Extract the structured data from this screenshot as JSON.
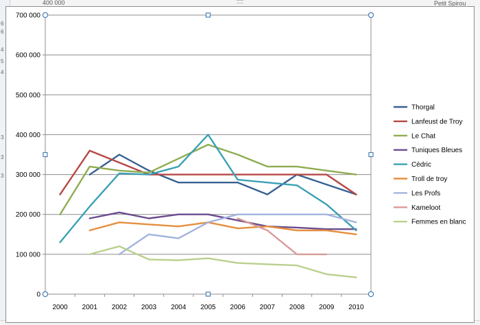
{
  "background": {
    "top_value": "400 000",
    "top_dots": "::::",
    "right_series": "Petit Spirou",
    "left_row_fragments": [
      "6",
      "6",
      "4",
      "5",
      "4",
      "3",
      "3",
      "3"
    ]
  },
  "colors": {
    "grid": "#8c8c8c",
    "handle": "#4a7fb5",
    "frame": "#8c8c8c"
  },
  "chart_data": {
    "type": "line",
    "title": "",
    "xlabel": "",
    "ylabel": "",
    "x": [
      "2000",
      "2001",
      "2002",
      "2003",
      "2004",
      "2005",
      "2006",
      "2007",
      "2008",
      "2009",
      "2010"
    ],
    "ylim": [
      0,
      700000
    ],
    "yticks": [
      0,
      100000,
      200000,
      300000,
      400000,
      500000,
      600000,
      700000
    ],
    "ytick_labels": [
      "0",
      "100 000",
      "200 000",
      "300 000",
      "400 000",
      "500 000",
      "600 000",
      "700 000"
    ],
    "grid": true,
    "legend_position": "right",
    "series": [
      {
        "name": "Thorgal",
        "color": "#376092",
        "values": [
          null,
          300000,
          350000,
          310000,
          280000,
          280000,
          280000,
          250000,
          300000,
          275000,
          250000
        ]
      },
      {
        "name": "Lanfeust de Troy",
        "color": "#b64744",
        "values": [
          250000,
          360000,
          330000,
          300000,
          300000,
          300000,
          300000,
          300000,
          300000,
          300000,
          250000
        ]
      },
      {
        "name": "Le Chat",
        "color": "#8fac4f",
        "values": [
          200000,
          320000,
          310000,
          305000,
          340000,
          375000,
          350000,
          320000,
          320000,
          310000,
          300000
        ]
      },
      {
        "name": "Tuniques Bleues",
        "color": "#6a4b8e",
        "values": [
          null,
          190000,
          205000,
          190000,
          200000,
          200000,
          185000,
          170000,
          167000,
          163000,
          163000
        ]
      },
      {
        "name": "Cédric",
        "color": "#3aa0b4",
        "values": [
          130000,
          220000,
          303000,
          300000,
          320000,
          400000,
          287000,
          280000,
          273000,
          225000,
          160000
        ]
      },
      {
        "name": "Troll de troy",
        "color": "#e58e3d",
        "values": [
          null,
          160000,
          180000,
          175000,
          170000,
          180000,
          165000,
          170000,
          160000,
          160000,
          150000
        ]
      },
      {
        "name": "Les Profs",
        "color": "#a3b3df",
        "values": [
          null,
          null,
          100000,
          150000,
          140000,
          180000,
          200000,
          200000,
          200000,
          200000,
          180000
        ]
      },
      {
        "name": "Kameloot",
        "color": "#d79a97",
        "values": [
          null,
          null,
          null,
          null,
          null,
          null,
          190000,
          160000,
          100000,
          100000,
          null
        ]
      },
      {
        "name": "Femmes en blanc",
        "color": "#b9d08c",
        "values": [
          null,
          100000,
          120000,
          87000,
          85000,
          90000,
          78000,
          75000,
          72000,
          50000,
          42000
        ]
      }
    ]
  }
}
